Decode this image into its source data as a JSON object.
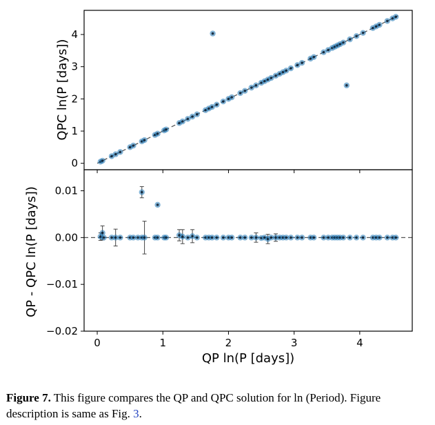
{
  "chart_data": [
    {
      "type": "scatter",
      "panel": "top",
      "xlabel": "",
      "ylabel": "QPC ln(P [days])",
      "xlim": [
        -0.2,
        4.8
      ],
      "ylim": [
        -0.2,
        4.75
      ],
      "xticks": [
        0,
        1,
        2,
        3,
        4
      ],
      "yticks": [
        0,
        1,
        2,
        3,
        4
      ],
      "reference_line": "y = x (dashed)",
      "marker_color": "#1f77b4",
      "x": [
        0.05,
        0.08,
        0.22,
        0.28,
        0.35,
        0.5,
        0.55,
        0.68,
        0.72,
        0.88,
        0.92,
        1.02,
        1.05,
        1.25,
        1.3,
        1.38,
        1.45,
        1.52,
        1.65,
        1.7,
        1.75,
        1.82,
        1.92,
        2.0,
        2.05,
        2.18,
        2.25,
        2.35,
        2.42,
        2.5,
        2.55,
        2.6,
        2.65,
        2.72,
        2.78,
        2.83,
        2.88,
        2.95,
        3.05,
        3.12,
        3.25,
        3.3,
        3.45,
        3.52,
        3.58,
        3.62,
        3.66,
        3.7,
        3.75,
        3.85,
        3.95,
        4.05,
        4.2,
        4.25,
        4.3,
        4.42,
        4.5,
        4.55,
        1.76,
        3.8
      ],
      "y": [
        0.05,
        0.08,
        0.22,
        0.28,
        0.35,
        0.5,
        0.55,
        0.68,
        0.72,
        0.88,
        0.92,
        1.02,
        1.05,
        1.25,
        1.3,
        1.38,
        1.45,
        1.52,
        1.65,
        1.7,
        1.75,
        1.82,
        1.92,
        2.0,
        2.05,
        2.18,
        2.25,
        2.35,
        2.42,
        2.5,
        2.55,
        2.6,
        2.65,
        2.72,
        2.78,
        2.83,
        2.88,
        2.95,
        3.05,
        3.12,
        3.25,
        3.3,
        3.45,
        3.52,
        3.58,
        3.62,
        3.66,
        3.7,
        3.75,
        3.85,
        3.95,
        4.05,
        4.2,
        4.25,
        4.3,
        4.42,
        4.5,
        4.55,
        4.03,
        2.42
      ]
    },
    {
      "type": "scatter",
      "panel": "bottom",
      "xlabel": "QP ln(P [days])",
      "ylabel": "QP - QPC  ln(P [days])",
      "xlim": [
        -0.2,
        4.8
      ],
      "ylim": [
        -0.02,
        0.0145
      ],
      "xticks": [
        0,
        1,
        2,
        3,
        4
      ],
      "yticks": [
        -0.02,
        -0.01,
        0.0,
        0.01
      ],
      "ytick_labels": [
        "−0.02",
        "−0.01",
        "0.00",
        "0.01"
      ],
      "reference_line": "y = 0 (dashed)",
      "marker_color": "#1f77b4",
      "x": [
        0.05,
        0.08,
        0.1,
        0.22,
        0.28,
        0.35,
        0.5,
        0.55,
        0.62,
        0.68,
        0.72,
        0.88,
        0.92,
        1.02,
        1.05,
        1.25,
        1.3,
        1.38,
        1.45,
        1.52,
        1.65,
        1.7,
        1.75,
        1.82,
        1.92,
        2.0,
        2.05,
        2.18,
        2.25,
        2.35,
        2.42,
        2.5,
        2.55,
        2.6,
        2.65,
        2.72,
        2.78,
        2.83,
        2.88,
        2.95,
        3.05,
        3.12,
        3.25,
        3.3,
        3.45,
        3.52,
        3.58,
        3.62,
        3.66,
        3.7,
        3.75,
        3.85,
        3.95,
        4.05,
        4.2,
        4.25,
        4.3,
        4.42,
        4.5,
        4.55,
        0.68,
        0.92
      ],
      "y": [
        0.0002,
        0.001,
        0.0,
        0.0,
        0.0,
        0.0,
        0.0,
        0.0,
        0.0,
        0.0,
        0.0,
        0.0,
        0.0,
        0.0,
        0.0,
        0.0005,
        0.0002,
        0.0,
        0.0003,
        0.0,
        0.0,
        0.0,
        0.0,
        0.0,
        0.0,
        0.0,
        0.0,
        0.0,
        0.0,
        0.0,
        0.0,
        -0.0001,
        0.0,
        -0.0003,
        0.0,
        0.0,
        0.0,
        0.0,
        0.0,
        0.0,
        0.0,
        0.0,
        0.0,
        0.0,
        0.0,
        0.0,
        0.0,
        0.0,
        0.0,
        0.0,
        0.0,
        0.0,
        0.0,
        0.0,
        0.0,
        0.0,
        0.0,
        0.0,
        0.0,
        0.0,
        0.0097,
        0.007
      ],
      "yerr": [
        0.0008,
        0.0015,
        0.0,
        0.0,
        0.0018,
        0.0,
        0.0,
        0.0,
        0.0,
        0.0,
        0.0035,
        0.0,
        0.0,
        0.0,
        0.0,
        0.0012,
        0.0015,
        0.0,
        0.0014,
        0.0,
        0.0,
        0.0,
        0.0,
        0.0,
        0.0,
        0.0,
        0.0,
        0.0,
        0.0,
        0.0,
        0.001,
        0.0,
        0.0,
        0.001,
        0.0,
        0.0008,
        0.0,
        0.0,
        0.0,
        0.0,
        0.0,
        0.0,
        0.0,
        0.0,
        0.0,
        0.0,
        0.0,
        0.0,
        0.0,
        0.0,
        0.0,
        0.0,
        0.0,
        0.0,
        0.0,
        0.0,
        0.0,
        0.0,
        0.0,
        0.0,
        0.0012,
        0.0
      ]
    }
  ],
  "caption": {
    "fig_label": "Figure 7.",
    "text": " This figure compares the QP and QPC solution for ln (Period). Figure description is same as Fig. ",
    "ref": "3",
    "end": "."
  }
}
